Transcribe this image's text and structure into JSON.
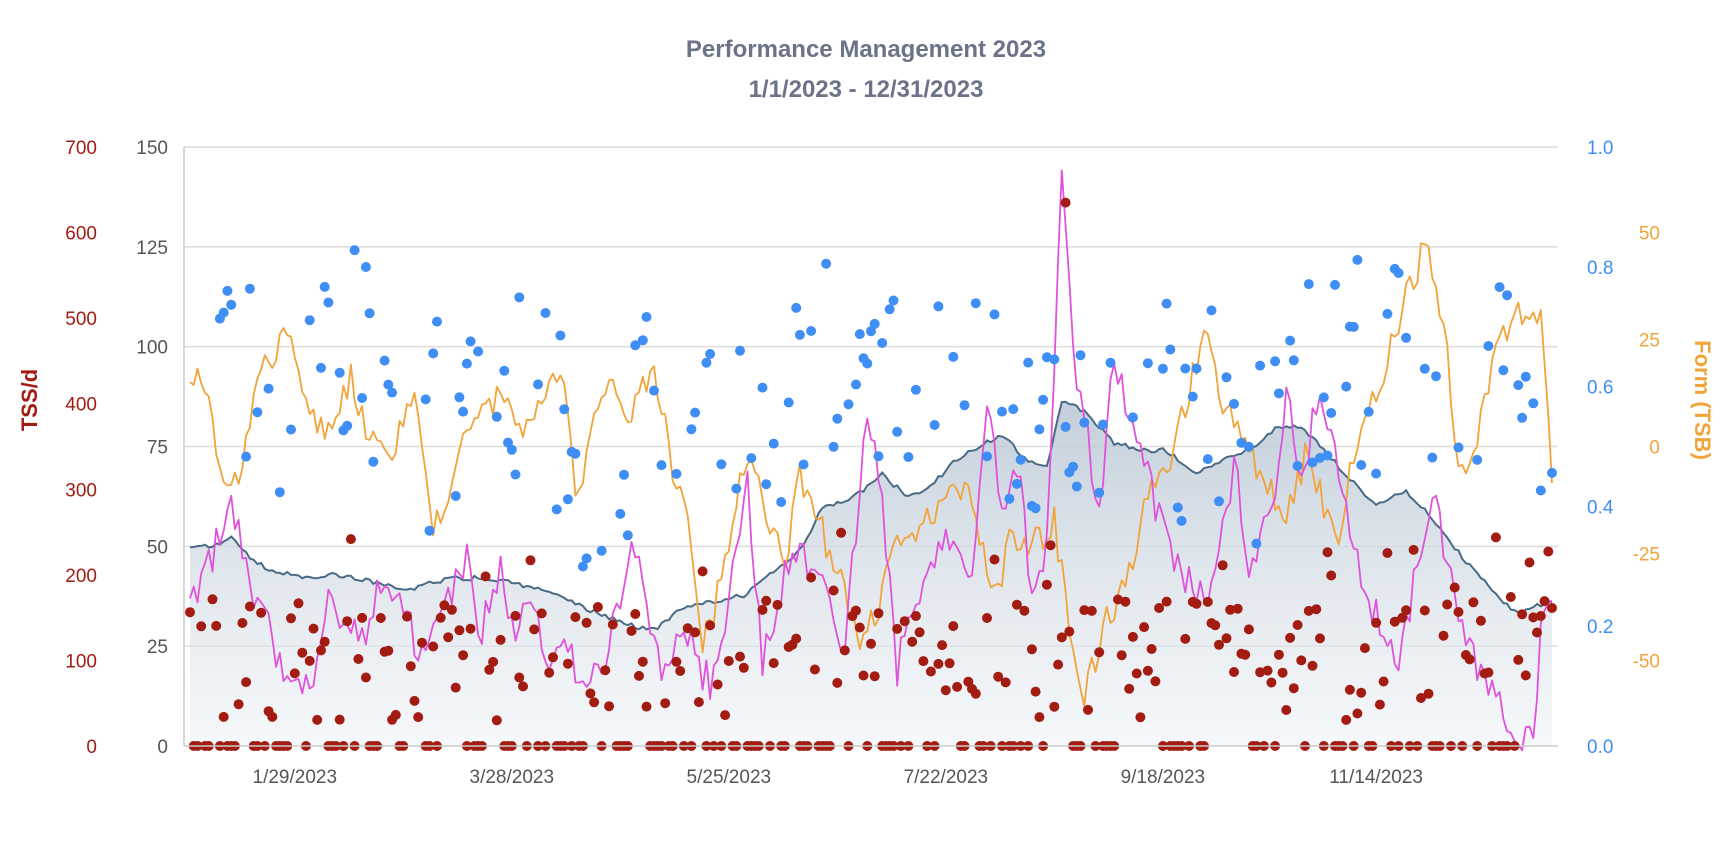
{
  "chart_data": {
    "type": "line",
    "title": "Performance Management 2023",
    "subtitle": "1/1/2023 - 12/31/2023",
    "x_range": [
      "2023-01-01",
      "2023-12-31"
    ],
    "x_ticks": [
      {
        "date": "2023-01-29",
        "label": "1/29/2023"
      },
      {
        "date": "2023-03-28",
        "label": "3/28/2023"
      },
      {
        "date": "2023-05-25",
        "label": "5/25/2023"
      },
      {
        "date": "2023-07-22",
        "label": "7/22/2023"
      },
      {
        "date": "2023-09-18",
        "label": "9/18/2023"
      },
      {
        "date": "2023-11-14",
        "label": "11/14/2023"
      }
    ],
    "axes": {
      "fitness": {
        "min": 0,
        "max": 150,
        "ticks": [
          0,
          25,
          50,
          75,
          100,
          125,
          150
        ],
        "color": "#555555",
        "gridlines": true
      },
      "tss": {
        "title": "TSS/d",
        "min": 0,
        "max": 700,
        "ticks": [
          0,
          100,
          200,
          300,
          400,
          500,
          600,
          700
        ],
        "color": "#a31c12"
      },
      "intensity": {
        "min": 0,
        "max": 1.0,
        "ticks": [
          "0.0",
          "0.2",
          "0.4",
          "0.6",
          "0.8",
          "1.0"
        ],
        "color": "#3f8ef5"
      },
      "form": {
        "title": "Form (TSB)",
        "min": -70,
        "max": 70,
        "ticks": [
          -50,
          -25,
          0,
          25,
          50
        ],
        "color": "#f2a33a"
      }
    },
    "series": [
      {
        "key": "fitness",
        "type": "area",
        "axis": "fitness",
        "color": "#4a6b86",
        "anchors": [
          [
            1,
            50
          ],
          [
            6,
            50
          ],
          [
            12,
            52
          ],
          [
            16,
            48
          ],
          [
            22,
            44
          ],
          [
            32,
            42
          ],
          [
            40,
            43
          ],
          [
            50,
            41
          ],
          [
            60,
            39
          ],
          [
            66,
            41
          ],
          [
            72,
            42
          ],
          [
            82,
            42
          ],
          [
            90,
            40
          ],
          [
            100,
            38
          ],
          [
            110,
            33
          ],
          [
            120,
            30
          ],
          [
            125,
            29
          ],
          [
            132,
            34
          ],
          [
            140,
            36
          ],
          [
            150,
            38
          ],
          [
            154,
            42
          ],
          [
            160,
            46
          ],
          [
            165,
            50
          ],
          [
            170,
            60
          ],
          [
            178,
            62
          ],
          [
            186,
            68
          ],
          [
            192,
            63
          ],
          [
            198,
            64
          ],
          [
            206,
            72
          ],
          [
            212,
            75
          ],
          [
            218,
            78
          ],
          [
            224,
            72
          ],
          [
            230,
            70
          ],
          [
            234,
            86
          ],
          [
            240,
            84
          ],
          [
            248,
            76
          ],
          [
            256,
            74
          ],
          [
            262,
            74
          ],
          [
            270,
            68
          ],
          [
            278,
            72
          ],
          [
            284,
            74
          ],
          [
            292,
            80
          ],
          [
            298,
            80
          ],
          [
            304,
            74
          ],
          [
            312,
            66
          ],
          [
            318,
            60
          ],
          [
            326,
            64
          ],
          [
            334,
            56
          ],
          [
            342,
            46
          ],
          [
            352,
            36
          ],
          [
            356,
            33
          ],
          [
            360,
            35
          ],
          [
            365,
            36
          ]
        ]
      },
      {
        "key": "fatigue",
        "type": "line",
        "axis": "fitness",
        "color": "#e052dc",
        "anchors": [
          [
            1,
            36
          ],
          [
            6,
            45
          ],
          [
            12,
            62
          ],
          [
            16,
            44
          ],
          [
            22,
            30
          ],
          [
            26,
            18
          ],
          [
            34,
            18
          ],
          [
            38,
            42
          ],
          [
            42,
            30
          ],
          [
            48,
            30
          ],
          [
            52,
            42
          ],
          [
            56,
            40
          ],
          [
            62,
            24
          ],
          [
            70,
            38
          ],
          [
            72,
            40
          ],
          [
            76,
            48
          ],
          [
            78,
            26
          ],
          [
            84,
            44
          ],
          [
            88,
            28
          ],
          [
            92,
            40
          ],
          [
            96,
            18
          ],
          [
            100,
            28
          ],
          [
            104,
            20
          ],
          [
            108,
            18
          ],
          [
            112,
            24
          ],
          [
            116,
            36
          ],
          [
            120,
            50
          ],
          [
            124,
            26
          ],
          [
            128,
            18
          ],
          [
            132,
            32
          ],
          [
            136,
            24
          ],
          [
            140,
            14
          ],
          [
            144,
            30
          ],
          [
            150,
            66
          ],
          [
            154,
            20
          ],
          [
            158,
            38
          ],
          [
            160,
            42
          ],
          [
            164,
            54
          ],
          [
            168,
            40
          ],
          [
            172,
            36
          ],
          [
            176,
            24
          ],
          [
            182,
            86
          ],
          [
            186,
            62
          ],
          [
            190,
            20
          ],
          [
            194,
            30
          ],
          [
            198,
            40
          ],
          [
            204,
            54
          ],
          [
            210,
            44
          ],
          [
            214,
            90
          ],
          [
            218,
            60
          ],
          [
            222,
            70
          ],
          [
            226,
            40
          ],
          [
            230,
            50
          ],
          [
            234,
            140
          ],
          [
            238,
            90
          ],
          [
            244,
            60
          ],
          [
            248,
            100
          ],
          [
            252,
            80
          ],
          [
            256,
            72
          ],
          [
            262,
            50
          ],
          [
            266,
            44
          ],
          [
            272,
            36
          ],
          [
            276,
            46
          ],
          [
            280,
            72
          ],
          [
            284,
            42
          ],
          [
            290,
            60
          ],
          [
            294,
            88
          ],
          [
            298,
            68
          ],
          [
            302,
            84
          ],
          [
            306,
            80
          ],
          [
            312,
            48
          ],
          [
            318,
            32
          ],
          [
            324,
            20
          ],
          [
            328,
            40
          ],
          [
            330,
            46
          ],
          [
            334,
            62
          ],
          [
            338,
            40
          ],
          [
            344,
            22
          ],
          [
            348,
            14
          ],
          [
            352,
            8
          ],
          [
            356,
            4
          ],
          [
            360,
            2
          ],
          [
            362,
            28
          ],
          [
            364,
            40
          ],
          [
            365,
            35
          ]
        ]
      },
      {
        "key": "form",
        "type": "line",
        "axis": "form",
        "color": "#f2a33a",
        "anchors": [
          [
            1,
            18
          ],
          [
            6,
            10
          ],
          [
            10,
            -8
          ],
          [
            14,
            -8
          ],
          [
            18,
            12
          ],
          [
            24,
            24
          ],
          [
            28,
            26
          ],
          [
            32,
            10
          ],
          [
            38,
            4
          ],
          [
            44,
            16
          ],
          [
            48,
            4
          ],
          [
            54,
            -4
          ],
          [
            58,
            6
          ],
          [
            62,
            10
          ],
          [
            66,
            -20
          ],
          [
            70,
            -12
          ],
          [
            74,
            6
          ],
          [
            80,
            8
          ],
          [
            84,
            12
          ],
          [
            90,
            6
          ],
          [
            96,
            14
          ],
          [
            100,
            20
          ],
          [
            104,
            -12
          ],
          [
            110,
            8
          ],
          [
            114,
            14
          ],
          [
            118,
            8
          ],
          [
            124,
            16
          ],
          [
            126,
            14
          ],
          [
            130,
            -6
          ],
          [
            134,
            -16
          ],
          [
            138,
            -48
          ],
          [
            144,
            -28
          ],
          [
            148,
            -8
          ],
          [
            152,
            -2
          ],
          [
            156,
            -20
          ],
          [
            160,
            -26
          ],
          [
            164,
            -8
          ],
          [
            168,
            -16
          ],
          [
            174,
            -28
          ],
          [
            180,
            -48
          ],
          [
            184,
            -40
          ],
          [
            190,
            -24
          ],
          [
            196,
            -20
          ],
          [
            204,
            -10
          ],
          [
            210,
            -12
          ],
          [
            216,
            -36
          ],
          [
            220,
            -22
          ],
          [
            226,
            -24
          ],
          [
            232,
            -16
          ],
          [
            236,
            -44
          ],
          [
            240,
            -60
          ],
          [
            246,
            -40
          ],
          [
            252,
            -30
          ],
          [
            256,
            -12
          ],
          [
            260,
            -10
          ],
          [
            266,
            6
          ],
          [
            272,
            26
          ],
          [
            276,
            14
          ],
          [
            282,
            0
          ],
          [
            288,
            -8
          ],
          [
            294,
            -16
          ],
          [
            300,
            0
          ],
          [
            304,
            -14
          ],
          [
            308,
            -20
          ],
          [
            312,
            0
          ],
          [
            318,
            12
          ],
          [
            324,
            30
          ],
          [
            330,
            44
          ],
          [
            332,
            48
          ],
          [
            336,
            28
          ],
          [
            338,
            14
          ],
          [
            340,
            -6
          ],
          [
            344,
            0
          ],
          [
            350,
            22
          ],
          [
            356,
            30
          ],
          [
            362,
            28
          ],
          [
            364,
            4
          ],
          [
            365,
            -6
          ]
        ]
      },
      {
        "key": "tss",
        "type": "scatter",
        "axis": "tss",
        "color": "#a31c12"
      },
      {
        "key": "intensity",
        "type": "scatter",
        "axis": "intensity",
        "color": "#3f8ef5"
      }
    ]
  }
}
